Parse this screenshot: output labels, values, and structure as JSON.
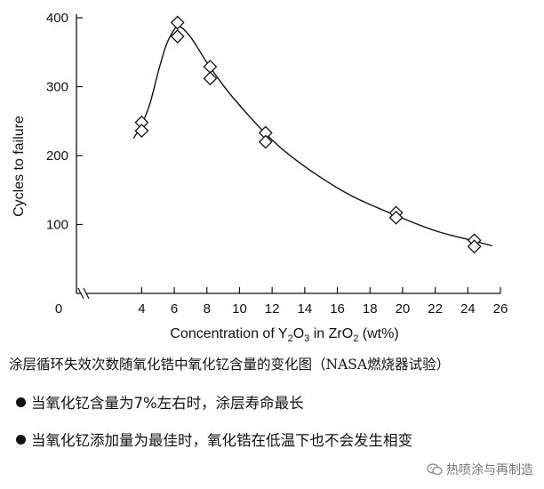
{
  "chart_data": {
    "type": "scatter",
    "ylabel": "Cycles to failure",
    "xlabel_parts": [
      "Concentration of Y",
      "2",
      "O",
      "3",
      " in ZrO",
      "2",
      " (wt%)"
    ],
    "xlim": [
      0,
      26
    ],
    "ylim": [
      0,
      400
    ],
    "x_ticks": [
      0,
      4,
      6,
      8,
      10,
      12,
      14,
      16,
      18,
      20,
      22,
      24,
      26
    ],
    "y_ticks": [
      100,
      200,
      300,
      400
    ],
    "grid": false,
    "points": [
      {
        "x": 4.0,
        "y": 248
      },
      {
        "x": 4.0,
        "y": 236
      },
      {
        "x": 6.2,
        "y": 393
      },
      {
        "x": 6.2,
        "y": 373
      },
      {
        "x": 8.2,
        "y": 329
      },
      {
        "x": 8.2,
        "y": 312
      },
      {
        "x": 11.6,
        "y": 233
      },
      {
        "x": 11.6,
        "y": 220
      },
      {
        "x": 19.6,
        "y": 117
      },
      {
        "x": 19.6,
        "y": 110
      },
      {
        "x": 24.4,
        "y": 77
      },
      {
        "x": 24.4,
        "y": 68
      }
    ],
    "fit_curve": [
      {
        "x": 3.5,
        "y": 225
      },
      {
        "x": 4.0,
        "y": 245
      },
      {
        "x": 4.5,
        "y": 275
      },
      {
        "x": 5.0,
        "y": 320
      },
      {
        "x": 5.5,
        "y": 360
      },
      {
        "x": 6.0,
        "y": 383
      },
      {
        "x": 6.3,
        "y": 388
      },
      {
        "x": 7.0,
        "y": 372
      },
      {
        "x": 8.0,
        "y": 335
      },
      {
        "x": 9.0,
        "y": 302
      },
      {
        "x": 10.0,
        "y": 273
      },
      {
        "x": 11.6,
        "y": 232
      },
      {
        "x": 13.0,
        "y": 202
      },
      {
        "x": 15.0,
        "y": 168
      },
      {
        "x": 17.0,
        "y": 140
      },
      {
        "x": 19.6,
        "y": 113
      },
      {
        "x": 22.0,
        "y": 91
      },
      {
        "x": 24.4,
        "y": 76
      },
      {
        "x": 25.5,
        "y": 69
      }
    ]
  },
  "caption": "涂层循环失效次数随氧化锆中氧化钇含量的变化图（NASA燃烧器试验）",
  "bullets": [
    "当氧化钇含量为7%左右时，涂层寿命最长",
    "当氧化钇添加量为最佳时，氧化锆在低温下也不会发生相变"
  ],
  "watermark": "热喷涂与再制造"
}
